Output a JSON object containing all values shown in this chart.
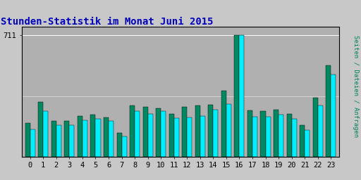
{
  "title": "Stunden-Statistik im Monat Juni 2015",
  "ylabel_rotated": "Seiten / Dateien / Anfragen",
  "hours": [
    0,
    1,
    2,
    3,
    4,
    5,
    6,
    7,
    8,
    9,
    10,
    11,
    12,
    13,
    14,
    15,
    16,
    17,
    18,
    19,
    20,
    21,
    22,
    23
  ],
  "seiten": [
    195,
    320,
    210,
    210,
    240,
    245,
    230,
    140,
    300,
    290,
    285,
    250,
    290,
    300,
    305,
    385,
    711,
    270,
    265,
    275,
    250,
    185,
    345,
    535
  ],
  "dateien": [
    160,
    265,
    185,
    185,
    215,
    220,
    210,
    120,
    265,
    250,
    265,
    225,
    230,
    240,
    275,
    310,
    711,
    235,
    235,
    245,
    220,
    155,
    300,
    480
  ],
  "ymax": 760,
  "ytick_value": 711,
  "ytick_label": "711",
  "bar_color_seiten": "#008860",
  "bar_color_dateien": "#00EEFF",
  "bg_color": "#C8C8C8",
  "plot_bg_color": "#B0B0B0",
  "title_color": "#0000BB",
  "ylabel_color": "#008060",
  "border_color": "#000000",
  "hline_color": "#FFFFFF",
  "title_fontsize": 10,
  "tick_fontsize": 7.5
}
